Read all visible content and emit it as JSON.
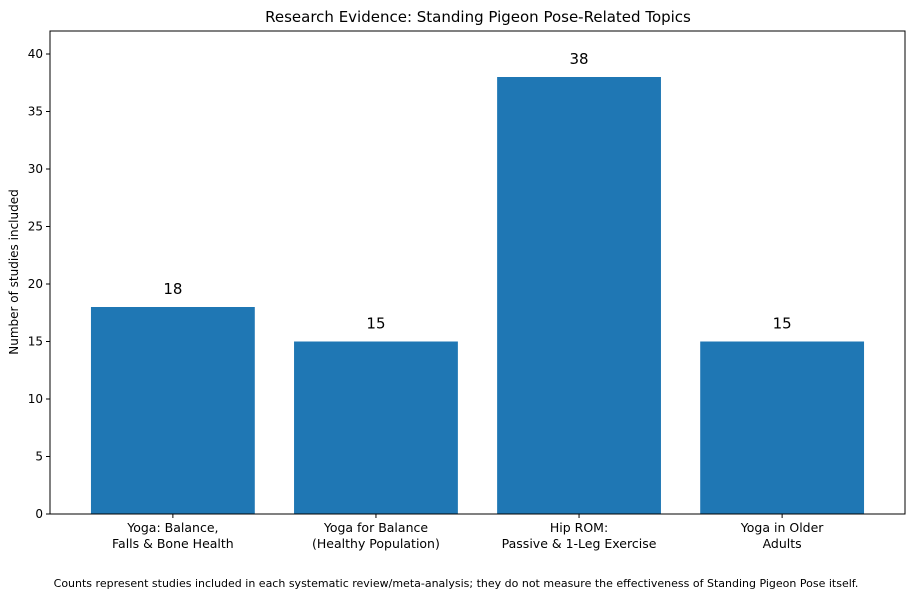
{
  "chart_data": {
    "type": "bar",
    "title": "Research Evidence: Standing Pigeon Pose-Related Topics",
    "xlabel": "",
    "ylabel": "Number of studies included",
    "categories": [
      [
        "Yoga: Balance,",
        "Falls & Bone Health"
      ],
      [
        "Yoga for Balance",
        "(Healthy Population)"
      ],
      [
        "Hip ROM:",
        "Passive & 1-Leg Exercise"
      ],
      [
        "Yoga in Older",
        "Adults"
      ]
    ],
    "values": [
      18,
      15,
      38,
      15
    ],
    "data_labels": [
      "18",
      "15",
      "38",
      "15"
    ],
    "ylim": [
      0,
      42
    ],
    "yticks": [
      0,
      5,
      10,
      15,
      20,
      25,
      30,
      35,
      40
    ],
    "bar_color": "#1f77b4",
    "grid": false,
    "legend": "none"
  },
  "footnote": "Counts represent studies included in each systematic review/meta-analysis; they do not measure the effectiveness of Standing Pigeon Pose itself."
}
